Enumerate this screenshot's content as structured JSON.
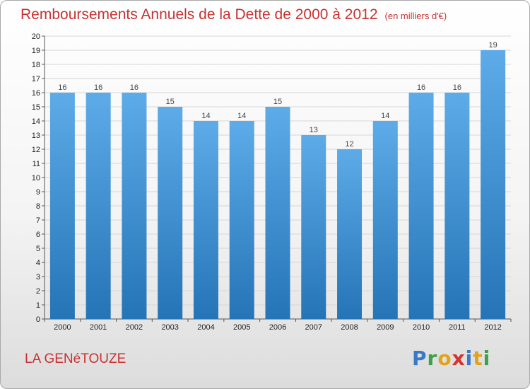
{
  "header": {
    "title": "Remboursements Annuels de la Dette de 2000 à 2012",
    "subtitle": "(en milliers d'€)"
  },
  "footer": {
    "city": "LA GENéTOUZE",
    "logo_letters": [
      {
        "ch": "P",
        "color": "#3a78c8"
      },
      {
        "ch": "r",
        "color": "#3aa14a"
      },
      {
        "ch": "o",
        "color": "#e2a21c"
      },
      {
        "ch": "x",
        "color": "#d8322c"
      },
      {
        "ch": "i",
        "color": "#3a78c8"
      },
      {
        "ch": "t",
        "color": "#e2a21c"
      },
      {
        "ch": "i",
        "color": "#3aa14a"
      }
    ]
  },
  "chart_data": {
    "type": "bar",
    "title": "Remboursements Annuels de la Dette de 2000 à 2012",
    "categories": [
      "2000",
      "2001",
      "2002",
      "2003",
      "2004",
      "2005",
      "2006",
      "2007",
      "2008",
      "2009",
      "2010",
      "2011",
      "2012"
    ],
    "values": [
      16,
      16,
      16,
      15,
      14,
      14,
      15,
      13,
      12,
      14,
      16,
      16,
      19
    ],
    "ylim": [
      0,
      20
    ],
    "yticks": [
      "0",
      "1",
      "2",
      "3",
      "4",
      "5",
      "6",
      "7",
      "8",
      "9",
      "10",
      "11",
      "12",
      "13",
      "14",
      "15",
      "16",
      "17",
      "18",
      "19",
      "20"
    ],
    "grid": true,
    "bar_color_top": "#5dabe8",
    "bar_color_bottom": "#2574b6"
  }
}
